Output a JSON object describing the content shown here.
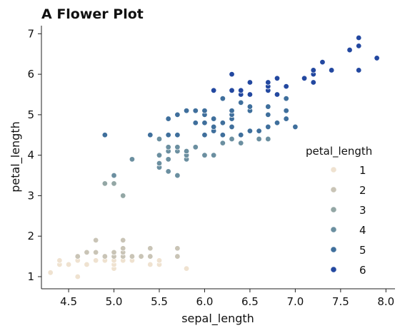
{
  "chart_data": {
    "type": "scatter",
    "title": "A Flower Plot",
    "xlabel": "sepal_length",
    "ylabel": "petal_length",
    "xlim": [
      4.2,
      8.1
    ],
    "ylim": [
      0.7,
      7.2
    ],
    "xticks": [
      4.5,
      5.0,
      5.5,
      6.0,
      6.5,
      7.0,
      7.5,
      8.0
    ],
    "xtick_labels": [
      "4.5",
      "5.0",
      "5.5",
      "6.0",
      "6.5",
      "7.0",
      "7.5",
      "8.0"
    ],
    "yticks": [
      1,
      2,
      3,
      4,
      5,
      6,
      7
    ],
    "ytick_labels": [
      "1",
      "2",
      "3",
      "4",
      "5",
      "6",
      "7"
    ],
    "hue": "petal_length",
    "legend": {
      "title": "petal_length",
      "placement": "right",
      "entries": [
        {
          "label": "1",
          "color": "#efe2d0"
        },
        {
          "label": "2",
          "color": "#c9c4b6"
        },
        {
          "label": "3",
          "color": "#93a7a5"
        },
        {
          "label": "4",
          "color": "#6b8fa0"
        },
        {
          "label": "5",
          "color": "#3f6f9c"
        },
        {
          "label": "6",
          "color": "#2348a0"
        }
      ]
    },
    "points": [
      [
        4.3,
        1.1
      ],
      [
        4.4,
        1.3
      ],
      [
        4.4,
        1.4
      ],
      [
        4.5,
        1.3
      ],
      [
        4.6,
        1.0
      ],
      [
        4.6,
        1.4
      ],
      [
        4.6,
        1.5
      ],
      [
        4.7,
        1.3
      ],
      [
        4.7,
        1.6
      ],
      [
        4.8,
        1.4
      ],
      [
        4.8,
        1.6
      ],
      [
        4.8,
        1.9
      ],
      [
        4.9,
        1.4
      ],
      [
        4.9,
        1.5
      ],
      [
        5.0,
        1.2
      ],
      [
        5.0,
        1.3
      ],
      [
        5.0,
        1.4
      ],
      [
        5.0,
        1.5
      ],
      [
        5.0,
        1.6
      ],
      [
        5.1,
        1.4
      ],
      [
        5.1,
        1.5
      ],
      [
        5.1,
        1.6
      ],
      [
        5.1,
        1.7
      ],
      [
        5.1,
        1.9
      ],
      [
        5.2,
        1.4
      ],
      [
        5.2,
        1.5
      ],
      [
        5.3,
        1.5
      ],
      [
        5.4,
        1.3
      ],
      [
        5.4,
        1.5
      ],
      [
        5.4,
        1.7
      ],
      [
        5.5,
        1.3
      ],
      [
        5.5,
        1.4
      ],
      [
        5.7,
        1.5
      ],
      [
        5.7,
        1.7
      ],
      [
        5.8,
        1.2
      ],
      [
        4.9,
        3.3
      ],
      [
        5.0,
        3.3
      ],
      [
        5.0,
        3.5
      ],
      [
        5.1,
        3.0
      ],
      [
        4.9,
        4.5
      ],
      [
        5.2,
        3.9
      ],
      [
        5.4,
        4.5
      ],
      [
        5.5,
        3.7
      ],
      [
        5.5,
        3.8
      ],
      [
        5.5,
        4.0
      ],
      [
        5.5,
        4.4
      ],
      [
        5.6,
        3.6
      ],
      [
        5.6,
        3.9
      ],
      [
        5.6,
        4.1
      ],
      [
        5.6,
        4.2
      ],
      [
        5.6,
        4.5
      ],
      [
        5.6,
        4.9
      ],
      [
        5.7,
        3.5
      ],
      [
        5.7,
        4.1
      ],
      [
        5.7,
        4.2
      ],
      [
        5.7,
        4.5
      ],
      [
        5.7,
        5.0
      ],
      [
        5.8,
        3.9
      ],
      [
        5.8,
        4.0
      ],
      [
        5.8,
        4.1
      ],
      [
        5.8,
        5.1
      ],
      [
        5.9,
        4.2
      ],
      [
        5.9,
        4.8
      ],
      [
        5.9,
        5.1
      ],
      [
        6.0,
        4.0
      ],
      [
        6.0,
        4.5
      ],
      [
        6.0,
        4.8
      ],
      [
        6.0,
        5.0
      ],
      [
        6.0,
        5.1
      ],
      [
        6.1,
        4.0
      ],
      [
        6.1,
        4.6
      ],
      [
        6.1,
        4.7
      ],
      [
        6.1,
        4.9
      ],
      [
        6.2,
        4.3
      ],
      [
        6.2,
        4.5
      ],
      [
        6.2,
        4.8
      ],
      [
        6.2,
        5.4
      ],
      [
        6.3,
        4.4
      ],
      [
        6.3,
        4.7
      ],
      [
        6.3,
        4.9
      ],
      [
        6.3,
        5.0
      ],
      [
        6.3,
        5.1
      ],
      [
        6.3,
        5.6
      ],
      [
        6.4,
        4.3
      ],
      [
        6.4,
        4.5
      ],
      [
        6.4,
        5.3
      ],
      [
        6.4,
        5.5
      ],
      [
        6.4,
        5.6
      ],
      [
        6.5,
        4.6
      ],
      [
        6.5,
        5.1
      ],
      [
        6.5,
        5.2
      ],
      [
        6.5,
        5.5
      ],
      [
        6.6,
        4.4
      ],
      [
        6.6,
        4.6
      ],
      [
        6.7,
        4.4
      ],
      [
        6.7,
        4.7
      ],
      [
        6.7,
        5.0
      ],
      [
        6.7,
        5.2
      ],
      [
        6.7,
        5.6
      ],
      [
        6.7,
        5.7
      ],
      [
        6.7,
        5.8
      ],
      [
        6.8,
        4.8
      ],
      [
        6.8,
        5.5
      ],
      [
        6.9,
        4.9
      ],
      [
        6.9,
        5.1
      ],
      [
        6.9,
        5.4
      ],
      [
        6.9,
        5.7
      ],
      [
        7.0,
        4.7
      ],
      [
        6.1,
        5.6
      ],
      [
        6.3,
        6.0
      ],
      [
        6.5,
        5.8
      ],
      [
        6.8,
        5.9
      ],
      [
        7.1,
        5.9
      ],
      [
        7.2,
        5.8
      ],
      [
        7.2,
        6.0
      ],
      [
        7.2,
        6.1
      ],
      [
        7.3,
        6.3
      ],
      [
        7.4,
        6.1
      ],
      [
        7.6,
        6.6
      ],
      [
        7.7,
        6.1
      ],
      [
        7.7,
        6.7
      ],
      [
        7.7,
        6.9
      ],
      [
        7.9,
        6.4
      ]
    ]
  }
}
